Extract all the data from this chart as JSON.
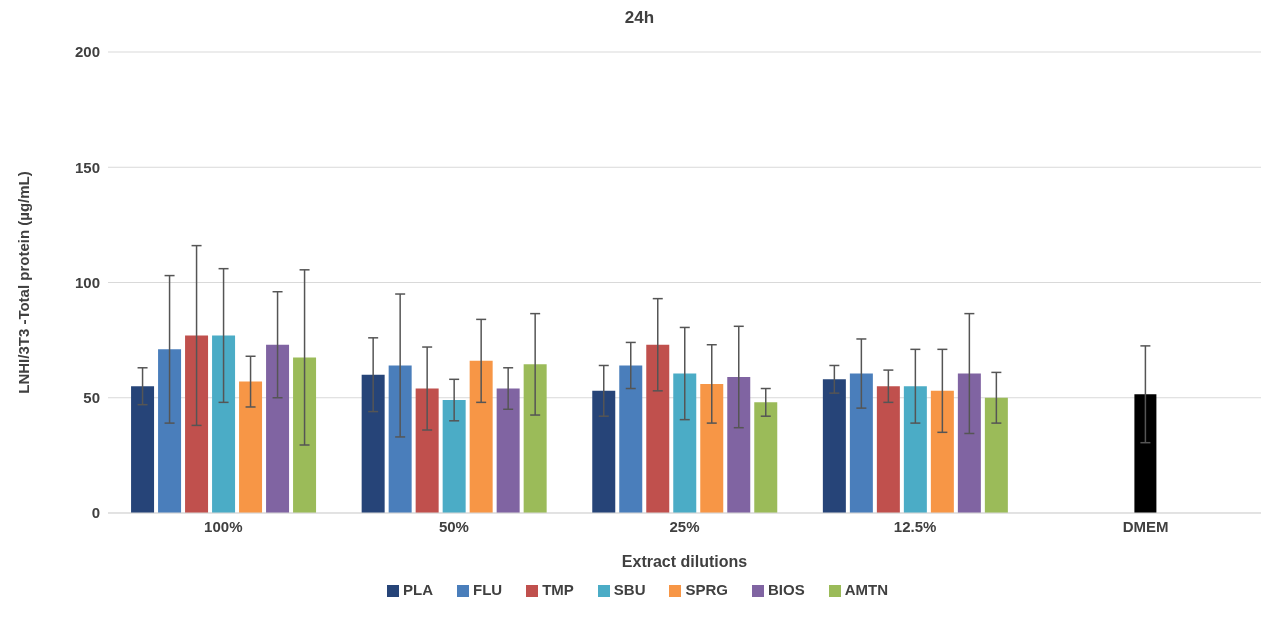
{
  "chart_data": {
    "type": "bar",
    "title": "24h",
    "xlabel": "Extract dilutions",
    "ylabel": "LNHI/3T3 -Total protein (µg/mL)",
    "categories": [
      "100%",
      "50%",
      "25%",
      "12.5%",
      "DMEM"
    ],
    "series": [
      {
        "name": "PLA",
        "color": "#264478",
        "values": [
          55,
          60,
          53,
          58,
          null
        ],
        "errors": [
          8,
          16,
          11,
          6,
          null
        ]
      },
      {
        "name": "FLU",
        "color": "#4a7ebb",
        "values": [
          71,
          64,
          64,
          60.5,
          null
        ],
        "errors": [
          32,
          31,
          10,
          15,
          null
        ]
      },
      {
        "name": "TMP",
        "color": "#c0504d",
        "values": [
          77,
          54,
          73,
          55,
          null
        ],
        "errors": [
          39,
          18,
          20,
          7,
          null
        ]
      },
      {
        "name": "SBU",
        "color": "#4bacc6",
        "values": [
          77,
          49,
          60.5,
          55,
          null
        ],
        "errors": [
          29,
          9,
          20,
          16,
          null
        ]
      },
      {
        "name": "SPRG",
        "color": "#f79646",
        "values": [
          57,
          66,
          56,
          53,
          null
        ],
        "errors": [
          11,
          18,
          17,
          18,
          null
        ]
      },
      {
        "name": "BIOS",
        "color": "#8064a2",
        "values": [
          73,
          54,
          59,
          60.5,
          null
        ],
        "errors": [
          23,
          9,
          22,
          26,
          null
        ]
      },
      {
        "name": "AMTN",
        "color": "#9bbb59",
        "values": [
          67.5,
          64.5,
          48,
          50,
          null
        ],
        "errors": [
          38,
          22,
          6,
          11,
          null
        ]
      },
      {
        "color": "#000000",
        "values": [
          null,
          null,
          null,
          null,
          51.5
        ],
        "errors": [
          null,
          null,
          null,
          null,
          21
        ]
      }
    ],
    "ylim": [
      0,
      200
    ],
    "yticks": [
      0,
      50,
      100,
      150,
      200
    ],
    "grid": "y",
    "legend": "bottom"
  }
}
